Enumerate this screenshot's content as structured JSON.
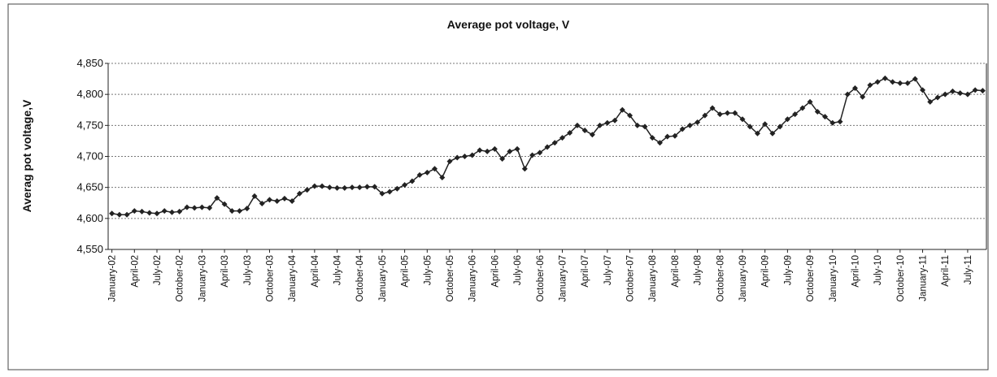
{
  "chart_data": {
    "type": "line",
    "title": "Average pot voltage, V",
    "y_label": "Averag pot voltage,V",
    "categories": [
      "January-02",
      null,
      null,
      "April-02",
      null,
      null,
      "July-02",
      null,
      null,
      "October-02",
      null,
      null,
      "January-03",
      null,
      null,
      "April-03",
      null,
      null,
      "July-03",
      null,
      null,
      "October-03",
      null,
      null,
      "January-04",
      null,
      null,
      "April-04",
      null,
      null,
      "July-04",
      null,
      null,
      "October-04",
      null,
      null,
      "January-05",
      null,
      null,
      "April-05",
      null,
      null,
      "July-05",
      null,
      null,
      "October-05",
      null,
      null,
      "January-06",
      null,
      null,
      "April-06",
      null,
      null,
      "July-06",
      null,
      null,
      "October-06",
      null,
      null,
      "January-07",
      null,
      null,
      "April-07",
      null,
      null,
      "July-07",
      null,
      null,
      "October-07",
      null,
      null,
      "January-08",
      null,
      null,
      "April-08",
      null,
      null,
      "July-08",
      null,
      null,
      "October-08",
      null,
      null,
      "January-09",
      null,
      null,
      "April-09",
      null,
      null,
      "July-09",
      null,
      null,
      "October-09",
      null,
      null,
      "January-10",
      null,
      null,
      "April-10",
      null,
      null,
      "July-10",
      null,
      null,
      "October-10",
      null,
      null,
      "January-11",
      null,
      null,
      "April-11",
      null,
      null,
      "July-11",
      null,
      null
    ],
    "series": [
      {
        "name": "Average pot voltage",
        "color": "#222222",
        "values": [
          4.608,
          4.606,
          4.606,
          4.612,
          4.611,
          4.609,
          4.608,
          4.612,
          4.61,
          4.611,
          4.618,
          4.617,
          4.618,
          4.617,
          4.633,
          4.623,
          4.612,
          4.612,
          4.616,
          4.636,
          4.624,
          4.63,
          4.628,
          4.632,
          4.628,
          4.64,
          4.646,
          4.652,
          4.652,
          4.65,
          4.649,
          4.649,
          4.65,
          4.65,
          4.651,
          4.651,
          4.64,
          4.643,
          4.648,
          4.654,
          4.66,
          4.67,
          4.674,
          4.68,
          4.666,
          4.692,
          4.698,
          4.7,
          4.702,
          4.71,
          4.708,
          4.712,
          4.696,
          4.708,
          4.712,
          4.68,
          4.702,
          4.706,
          4.715,
          4.722,
          4.73,
          4.738,
          4.75,
          4.742,
          4.735,
          4.75,
          4.754,
          4.758,
          4.775,
          4.766,
          4.75,
          4.748,
          4.73,
          4.722,
          4.732,
          4.733,
          4.744,
          4.75,
          4.755,
          4.766,
          4.778,
          4.768,
          4.77,
          4.77,
          4.76,
          4.748,
          4.737,
          4.752,
          4.737,
          4.748,
          4.76,
          4.768,
          4.778,
          4.788,
          4.772,
          4.764,
          4.754,
          4.756,
          4.8,
          4.81,
          4.796,
          4.815,
          4.82,
          4.826,
          4.82,
          4.818,
          4.818,
          4.825,
          4.807,
          4.788,
          4.795,
          4.8,
          4.805,
          4.802,
          4.8,
          4.807,
          4.806
        ]
      }
    ],
    "ylim": [
      4.55,
      4.85
    ],
    "yticks": [
      {
        "value": 4.55,
        "label": "4,550"
      },
      {
        "value": 4.6,
        "label": "4,600"
      },
      {
        "value": 4.65,
        "label": "4,650"
      },
      {
        "value": 4.7,
        "label": "4,700"
      },
      {
        "value": 4.75,
        "label": "4,750"
      },
      {
        "value": 4.8,
        "label": "4,800"
      },
      {
        "value": 4.85,
        "label": "4,850"
      }
    ],
    "grid": true
  }
}
